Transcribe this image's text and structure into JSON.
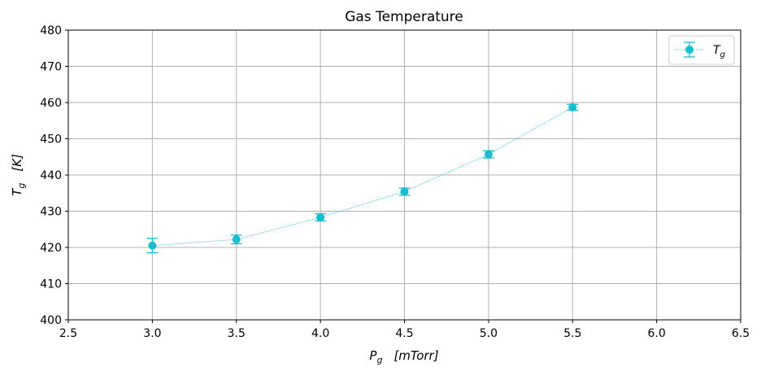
{
  "chart_data": {
    "type": "line",
    "title": "Gas Temperature",
    "xlabel": {
      "main": "P",
      "sub": "g",
      "unit": "[mTorr]"
    },
    "ylabel": {
      "main": "T",
      "sub": "g",
      "unit": "[K]"
    },
    "xlim": [
      2.5,
      6.5
    ],
    "ylim": [
      400,
      480
    ],
    "xticks": [
      "2.5",
      "3.0",
      "3.5",
      "4.0",
      "4.5",
      "5.0",
      "5.5",
      "6.0",
      "6.5"
    ],
    "yticks": [
      "400",
      "410",
      "420",
      "430",
      "440",
      "450",
      "460",
      "470",
      "480"
    ],
    "grid": true,
    "legend_position": "top-right",
    "series": [
      {
        "name": {
          "main": "T",
          "sub": "g"
        },
        "color": "#17becf",
        "line_style": "dotted",
        "marker": "circle",
        "x": [
          3.0,
          3.5,
          4.0,
          4.5,
          5.0,
          5.5
        ],
        "y": [
          420.5,
          422.2,
          428.3,
          435.4,
          445.7,
          458.7
        ],
        "yerr": [
          2.0,
          1.2,
          1.0,
          1.0,
          1.0,
          0.8
        ]
      }
    ]
  }
}
